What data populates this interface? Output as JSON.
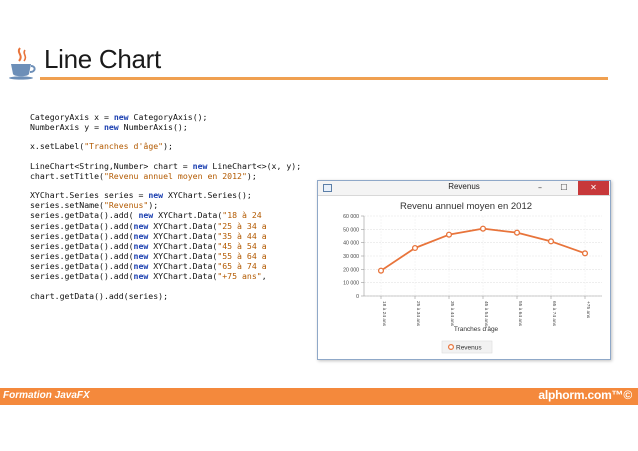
{
  "slide": {
    "title": "Line Chart",
    "footer_course": "Formation JavaFX",
    "footer_brand": "alphorm.com™©",
    "accent_color": "#f4893c",
    "logo_icon": "java-cup-icon"
  },
  "code": {
    "lines": [
      [
        [
          "CategoryAxis x = ",
          "t"
        ],
        [
          "new",
          "k"
        ],
        [
          " CategoryAxis();",
          "t"
        ]
      ],
      [
        [
          "NumberAxis y = ",
          "t"
        ],
        [
          "new",
          "k"
        ],
        [
          " NumberAxis();",
          "t"
        ]
      ],
      null,
      [
        [
          "x.setLabel(",
          "t"
        ],
        [
          "\"Tranches d'âge\"",
          "s"
        ],
        [
          ");",
          "t"
        ]
      ],
      null,
      [
        [
          "LineChart<String,Number> chart = ",
          "t"
        ],
        [
          "new",
          "k"
        ],
        [
          " LineChart<>(x, y);",
          "t"
        ]
      ],
      [
        [
          "chart.setTitle(",
          "t"
        ],
        [
          "\"Revenu annuel moyen en 2012\"",
          "s"
        ],
        [
          ");",
          "t"
        ]
      ],
      null,
      [
        [
          "XYChart.Series series = ",
          "t"
        ],
        [
          "new",
          "k"
        ],
        [
          " XYChart.Series();",
          "t"
        ]
      ],
      [
        [
          "series.setName(",
          "t"
        ],
        [
          "\"Revenus\"",
          "s"
        ],
        [
          ");",
          "t"
        ]
      ],
      [
        [
          "series.getData().add( ",
          "t"
        ],
        [
          "new",
          "k"
        ],
        [
          " XYChart.Data(",
          "t"
        ],
        [
          "\"18 à 24 ",
          "s"
        ]
      ],
      [
        [
          "series.getData().add(",
          "t"
        ],
        [
          "new",
          "k"
        ],
        [
          " XYChart.Data(",
          "t"
        ],
        [
          "\"25 à 34 a",
          "s"
        ]
      ],
      [
        [
          "series.getData().add(",
          "t"
        ],
        [
          "new",
          "k"
        ],
        [
          " XYChart.Data(",
          "t"
        ],
        [
          "\"35 à 44 a",
          "s"
        ]
      ],
      [
        [
          "series.getData().add(",
          "t"
        ],
        [
          "new",
          "k"
        ],
        [
          " XYChart.Data(",
          "t"
        ],
        [
          "\"45 à 54 a",
          "s"
        ]
      ],
      [
        [
          "series.getData().add(",
          "t"
        ],
        [
          "new",
          "k"
        ],
        [
          " XYChart.Data(",
          "t"
        ],
        [
          "\"55 à 64 a",
          "s"
        ]
      ],
      [
        [
          "series.getData().add(",
          "t"
        ],
        [
          "new",
          "k"
        ],
        [
          " XYChart.Data(",
          "t"
        ],
        [
          "\"65 à 74 a",
          "s"
        ]
      ],
      [
        [
          "series.getData().add(",
          "t"
        ],
        [
          "new",
          "k"
        ],
        [
          " XYChart.Data(",
          "t"
        ],
        [
          "\"+75 ans\"",
          "s"
        ],
        [
          ",",
          "t"
        ]
      ],
      null,
      [
        [
          "chart.getData().add(series);",
          "t"
        ]
      ]
    ]
  },
  "window": {
    "title": "Revenus",
    "min_label": "–",
    "max_label": "☐",
    "close_label": "✕"
  },
  "chart_data": {
    "type": "line",
    "title": "Revenu annuel moyen en 2012",
    "xlabel": "Tranches d'âge",
    "ylabel": "",
    "categories": [
      "18 à 24 ans",
      "25 à 34 ans",
      "35 à 44 ans",
      "45 à 54 ans",
      "55 à 64 ans",
      "65 à 74 ans",
      "+75 ans"
    ],
    "series": [
      {
        "name": "Revenus",
        "values": [
          19000,
          36000,
          46000,
          50500,
          47500,
          41000,
          32000
        ],
        "color": "#e8743b"
      }
    ],
    "ylim": [
      0,
      60000
    ],
    "yticks": [
      0,
      10000,
      20000,
      30000,
      40000,
      50000,
      60000
    ],
    "ytick_labels": [
      "0",
      "10 000",
      "20 000",
      "30 000",
      "40 000",
      "50 000",
      "60 000"
    ],
    "grid": true,
    "legend": "bottom-center"
  }
}
